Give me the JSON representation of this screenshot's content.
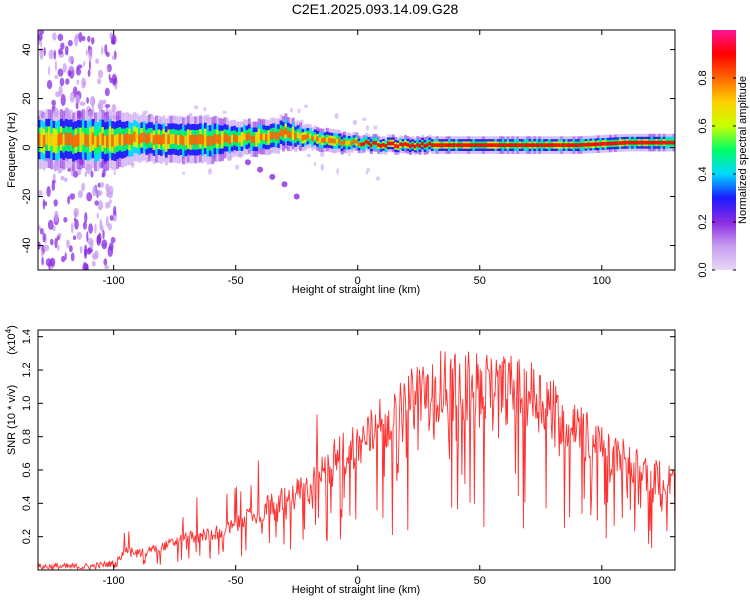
{
  "figure": {
    "title": "C2E1.2025.093.14.09.G28"
  },
  "chart_data": [
    {
      "type": "heatmap",
      "title": "C2E1.2025.093.14.09.G28",
      "xlabel": "Height of straight line (km)",
      "ylabel": "Frequency (Hz)",
      "xlim": [
        -131,
        130
      ],
      "ylim": [
        -50,
        48
      ],
      "xticks": [
        -100,
        -50,
        0,
        50,
        100
      ],
      "yticks": [
        40,
        20,
        0,
        -20,
        -40
      ],
      "colorbar": {
        "label": "Normalized spectral amplitude",
        "range": [
          0.0,
          1.0
        ],
        "ticks": [
          0.0,
          0.2,
          0.4,
          0.6,
          0.8
        ],
        "colors": [
          "#e9d8f7",
          "#c79cf0",
          "#8a2be2",
          "#1a1aff",
          "#00d9ff",
          "#00ff66",
          "#c8ff00",
          "#ffd000",
          "#ff6600",
          "#ff0000",
          "#ff1493"
        ]
      },
      "ridge": {
        "x": [
          -130,
          -110,
          -100,
          -90,
          -80,
          -70,
          -60,
          -50,
          -40,
          -30,
          -20,
          -10,
          0,
          10,
          20,
          30,
          50,
          70,
          90,
          110,
          130
        ],
        "freq_center": [
          3,
          3,
          3,
          4,
          3,
          3,
          3,
          4,
          4,
          6,
          4,
          2,
          2,
          1,
          1,
          1,
          1,
          1,
          1,
          2,
          2
        ],
        "halfwidth": [
          5,
          5,
          5,
          4,
          4,
          4,
          4,
          3,
          3,
          3,
          2,
          2,
          1.5,
          1.5,
          1.5,
          1.5,
          1.5,
          1.5,
          1.5,
          1.5,
          1.5
        ]
      },
      "branch": {
        "x": [
          -45,
          -40,
          -35,
          -30,
          -25
        ],
        "freq": [
          -6,
          -9,
          -12,
          -15,
          -20
        ]
      }
    },
    {
      "type": "line",
      "xlabel": "Height of straight line (km)",
      "ylabel": "SNR (10 * v/v)",
      "y_multiplier": "(x10",
      "y_multiplier_exp": "4",
      "y_multiplier_close": ")",
      "xlim": [
        -131,
        130
      ],
      "ylim": [
        0.0,
        1.44
      ],
      "xticks": [
        -100,
        -50,
        0,
        50,
        100
      ],
      "yticks": [
        0.2,
        0.4,
        0.6,
        0.8,
        1.0,
        1.2,
        1.4
      ],
      "color": "#ff3030",
      "envelope": {
        "x": [
          -131,
          -120,
          -110,
          -100,
          -95,
          -90,
          -80,
          -70,
          -60,
          -50,
          -40,
          -30,
          -20,
          -10,
          0,
          10,
          20,
          25,
          30,
          40,
          50,
          60,
          70,
          80,
          90,
          100,
          110,
          120,
          130
        ],
        "y": [
          0.02,
          0.02,
          0.02,
          0.04,
          0.14,
          0.12,
          0.16,
          0.22,
          0.25,
          0.3,
          0.4,
          0.5,
          0.55,
          0.75,
          0.85,
          1.0,
          1.1,
          1.23,
          1.26,
          1.27,
          1.26,
          1.24,
          1.22,
          1.12,
          0.95,
          0.85,
          0.75,
          0.65,
          0.6
        ]
      }
    }
  ]
}
